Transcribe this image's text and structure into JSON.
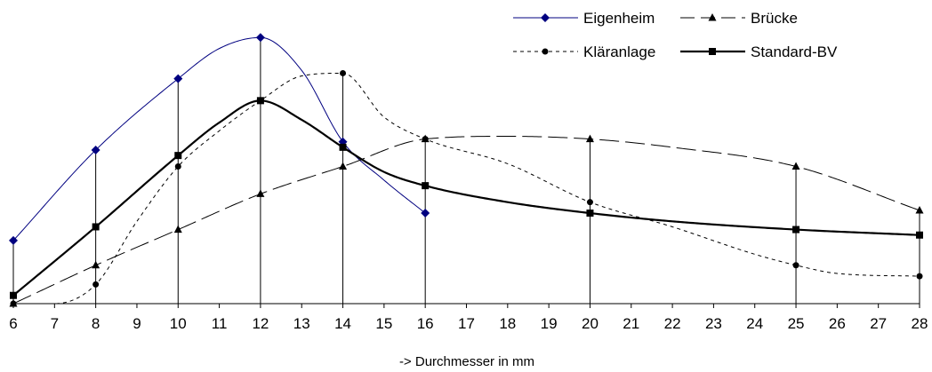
{
  "chart_data": {
    "type": "line",
    "xlabel": "-> Durchmesser in mm",
    "ylabel": "",
    "x_ticks": [
      6,
      7,
      8,
      9,
      10,
      11,
      12,
      13,
      14,
      15,
      16,
      17,
      18,
      19,
      20,
      21,
      22,
      23,
      24,
      25,
      26,
      27,
      28
    ],
    "xlim": [
      6,
      28
    ],
    "ylim": [
      0,
      100
    ],
    "grid": false,
    "legend_position": "top-right",
    "drop_lines": [
      6,
      8,
      10,
      12,
      14,
      16,
      20,
      25,
      28
    ],
    "series": [
      {
        "name": "Eigenheim",
        "color": "#000080",
        "line_style": "solid-thin",
        "marker": "diamond",
        "marker_x": [
          6,
          8,
          10,
          12,
          14,
          16
        ],
        "values": [
          [
            6,
            23
          ],
          [
            8,
            56
          ],
          [
            10,
            82
          ],
          [
            11,
            93
          ],
          [
            12,
            97
          ],
          [
            13,
            85
          ],
          [
            14,
            59
          ],
          [
            15,
            45
          ],
          [
            16,
            33
          ]
        ]
      },
      {
        "name": "Brücke",
        "color": "#000000",
        "line_style": "long-dash",
        "marker": "triangle",
        "marker_x": [
          6,
          8,
          10,
          12,
          14,
          16,
          20,
          25,
          28
        ],
        "values": [
          [
            6,
            0
          ],
          [
            8,
            14
          ],
          [
            10,
            27
          ],
          [
            12,
            40
          ],
          [
            14,
            50
          ],
          [
            16,
            60
          ],
          [
            18,
            61
          ],
          [
            20,
            60
          ],
          [
            22,
            57
          ],
          [
            25,
            50
          ],
          [
            28,
            34
          ]
        ]
      },
      {
        "name": "Kläranlage",
        "color": "#000000",
        "line_style": "short-dash",
        "marker": "circle",
        "marker_x": [
          6,
          8,
          10,
          12,
          14,
          16,
          20,
          25,
          28
        ],
        "values": [
          [
            6,
            0
          ],
          [
            7,
            0
          ],
          [
            8,
            7
          ],
          [
            9,
            30
          ],
          [
            10,
            50
          ],
          [
            11,
            63
          ],
          [
            12,
            74
          ],
          [
            13,
            83
          ],
          [
            14,
            84
          ],
          [
            15,
            68
          ],
          [
            16,
            60
          ],
          [
            18,
            51
          ],
          [
            20,
            37
          ],
          [
            22,
            28
          ],
          [
            24,
            18
          ],
          [
            25,
            14
          ],
          [
            26,
            11
          ],
          [
            28,
            10
          ]
        ]
      },
      {
        "name": "Standard-BV",
        "color": "#000000",
        "line_style": "solid-thick",
        "marker": "square",
        "marker_x": [
          6,
          8,
          10,
          12,
          14,
          16,
          20,
          25,
          28
        ],
        "values": [
          [
            6,
            3
          ],
          [
            8,
            28
          ],
          [
            10,
            54
          ],
          [
            11,
            66
          ],
          [
            12,
            74
          ],
          [
            13,
            67
          ],
          [
            14,
            57
          ],
          [
            15,
            48
          ],
          [
            16,
            43
          ],
          [
            18,
            37
          ],
          [
            20,
            33
          ],
          [
            22,
            30
          ],
          [
            25,
            27
          ],
          [
            28,
            25
          ]
        ]
      }
    ]
  }
}
